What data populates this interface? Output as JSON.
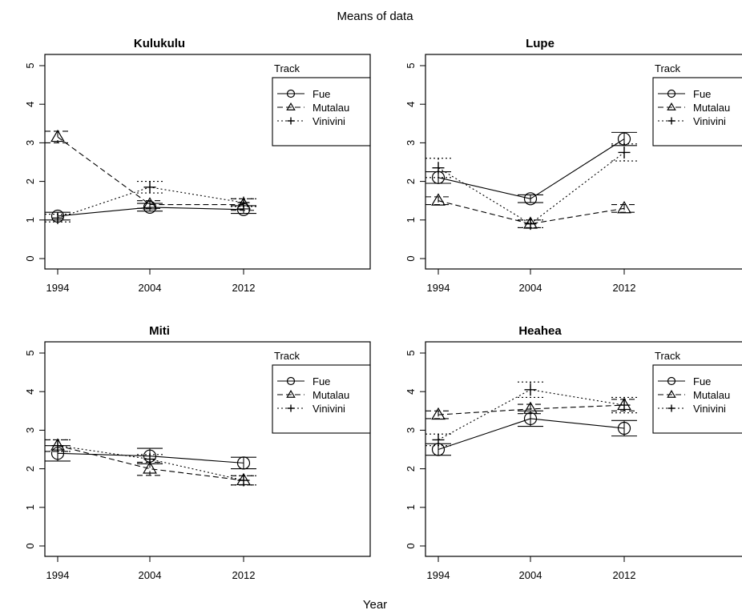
{
  "title": "Means of data",
  "xlabel": "Year",
  "chart_data": [
    {
      "type": "line",
      "title": "Kulukulu",
      "legend_title": "Track",
      "x": [
        "1994",
        "2004",
        "2012"
      ],
      "ylim": [
        0,
        5
      ],
      "y_ticks": [
        "0",
        "1",
        "2",
        "3",
        "4",
        "5"
      ],
      "series": [
        {
          "name": "Fue",
          "linestyle": "solid",
          "marker": "circle",
          "values": [
            1.1,
            1.33,
            1.27
          ],
          "err": [
            0.1,
            0.1,
            0.1
          ]
        },
        {
          "name": "Mutalau",
          "linestyle": "dashed",
          "marker": "triangle",
          "values": [
            3.15,
            1.4,
            1.4
          ],
          "err": [
            0.15,
            0.1,
            0.15
          ]
        },
        {
          "name": "Vinivini",
          "linestyle": "dotted",
          "marker": "plus",
          "values": [
            1.05,
            1.85,
            1.45
          ],
          "err": [
            0.1,
            0.15,
            0.1
          ]
        }
      ]
    },
    {
      "type": "line",
      "title": "Lupe",
      "legend_title": "Track",
      "x": [
        "1994",
        "2004",
        "2012"
      ],
      "ylim": [
        0,
        5
      ],
      "y_ticks": [
        "0",
        "1",
        "2",
        "3",
        "4",
        "5"
      ],
      "series": [
        {
          "name": "Fue",
          "linestyle": "solid",
          "marker": "circle",
          "values": [
            2.1,
            1.55,
            3.1
          ],
          "err": [
            0.15,
            0.1,
            0.17
          ]
        },
        {
          "name": "Mutalau",
          "linestyle": "dashed",
          "marker": "triangle",
          "values": [
            1.5,
            0.9,
            1.3
          ],
          "err": [
            0.1,
            0.1,
            0.1
          ]
        },
        {
          "name": "Vinivini",
          "linestyle": "dotted",
          "marker": "plus",
          "values": [
            2.35,
            0.9,
            2.75
          ],
          "err": [
            0.25,
            0.1,
            0.22
          ]
        }
      ]
    },
    {
      "type": "line",
      "title": "Miti",
      "legend_title": "Track",
      "x": [
        "1994",
        "2004",
        "2012"
      ],
      "ylim": [
        0,
        5
      ],
      "y_ticks": [
        "0",
        "1",
        "2",
        "3",
        "4",
        "5"
      ],
      "series": [
        {
          "name": "Fue",
          "linestyle": "solid",
          "marker": "circle",
          "values": [
            2.4,
            2.33,
            2.15
          ],
          "err": [
            0.2,
            0.2,
            0.15
          ]
        },
        {
          "name": "Mutalau",
          "linestyle": "dashed",
          "marker": "triangle",
          "values": [
            2.6,
            2.0,
            1.7
          ],
          "err": [
            0.15,
            0.17,
            0.12
          ]
        },
        {
          "name": "Vinivini",
          "linestyle": "dotted",
          "marker": "plus",
          "values": [
            2.6,
            2.25,
            1.7
          ],
          "err": [
            0.15,
            0.12,
            0.12
          ]
        }
      ]
    },
    {
      "type": "line",
      "title": "Heahea",
      "legend_title": "Track",
      "x": [
        "1994",
        "2004",
        "2012"
      ],
      "ylim": [
        0,
        5
      ],
      "y_ticks": [
        "0",
        "1",
        "2",
        "3",
        "4",
        "5"
      ],
      "series": [
        {
          "name": "Fue",
          "linestyle": "solid",
          "marker": "circle",
          "values": [
            2.5,
            3.3,
            3.05
          ],
          "err": [
            0.15,
            0.2,
            0.2
          ]
        },
        {
          "name": "Mutalau",
          "linestyle": "dashed",
          "marker": "triangle",
          "values": [
            3.4,
            3.55,
            3.65
          ],
          "err": [
            0.1,
            0.12,
            0.15
          ]
        },
        {
          "name": "Vinivini",
          "linestyle": "dotted",
          "marker": "plus",
          "values": [
            2.75,
            4.05,
            3.65
          ],
          "err": [
            0.15,
            0.2,
            0.2
          ]
        }
      ]
    }
  ]
}
